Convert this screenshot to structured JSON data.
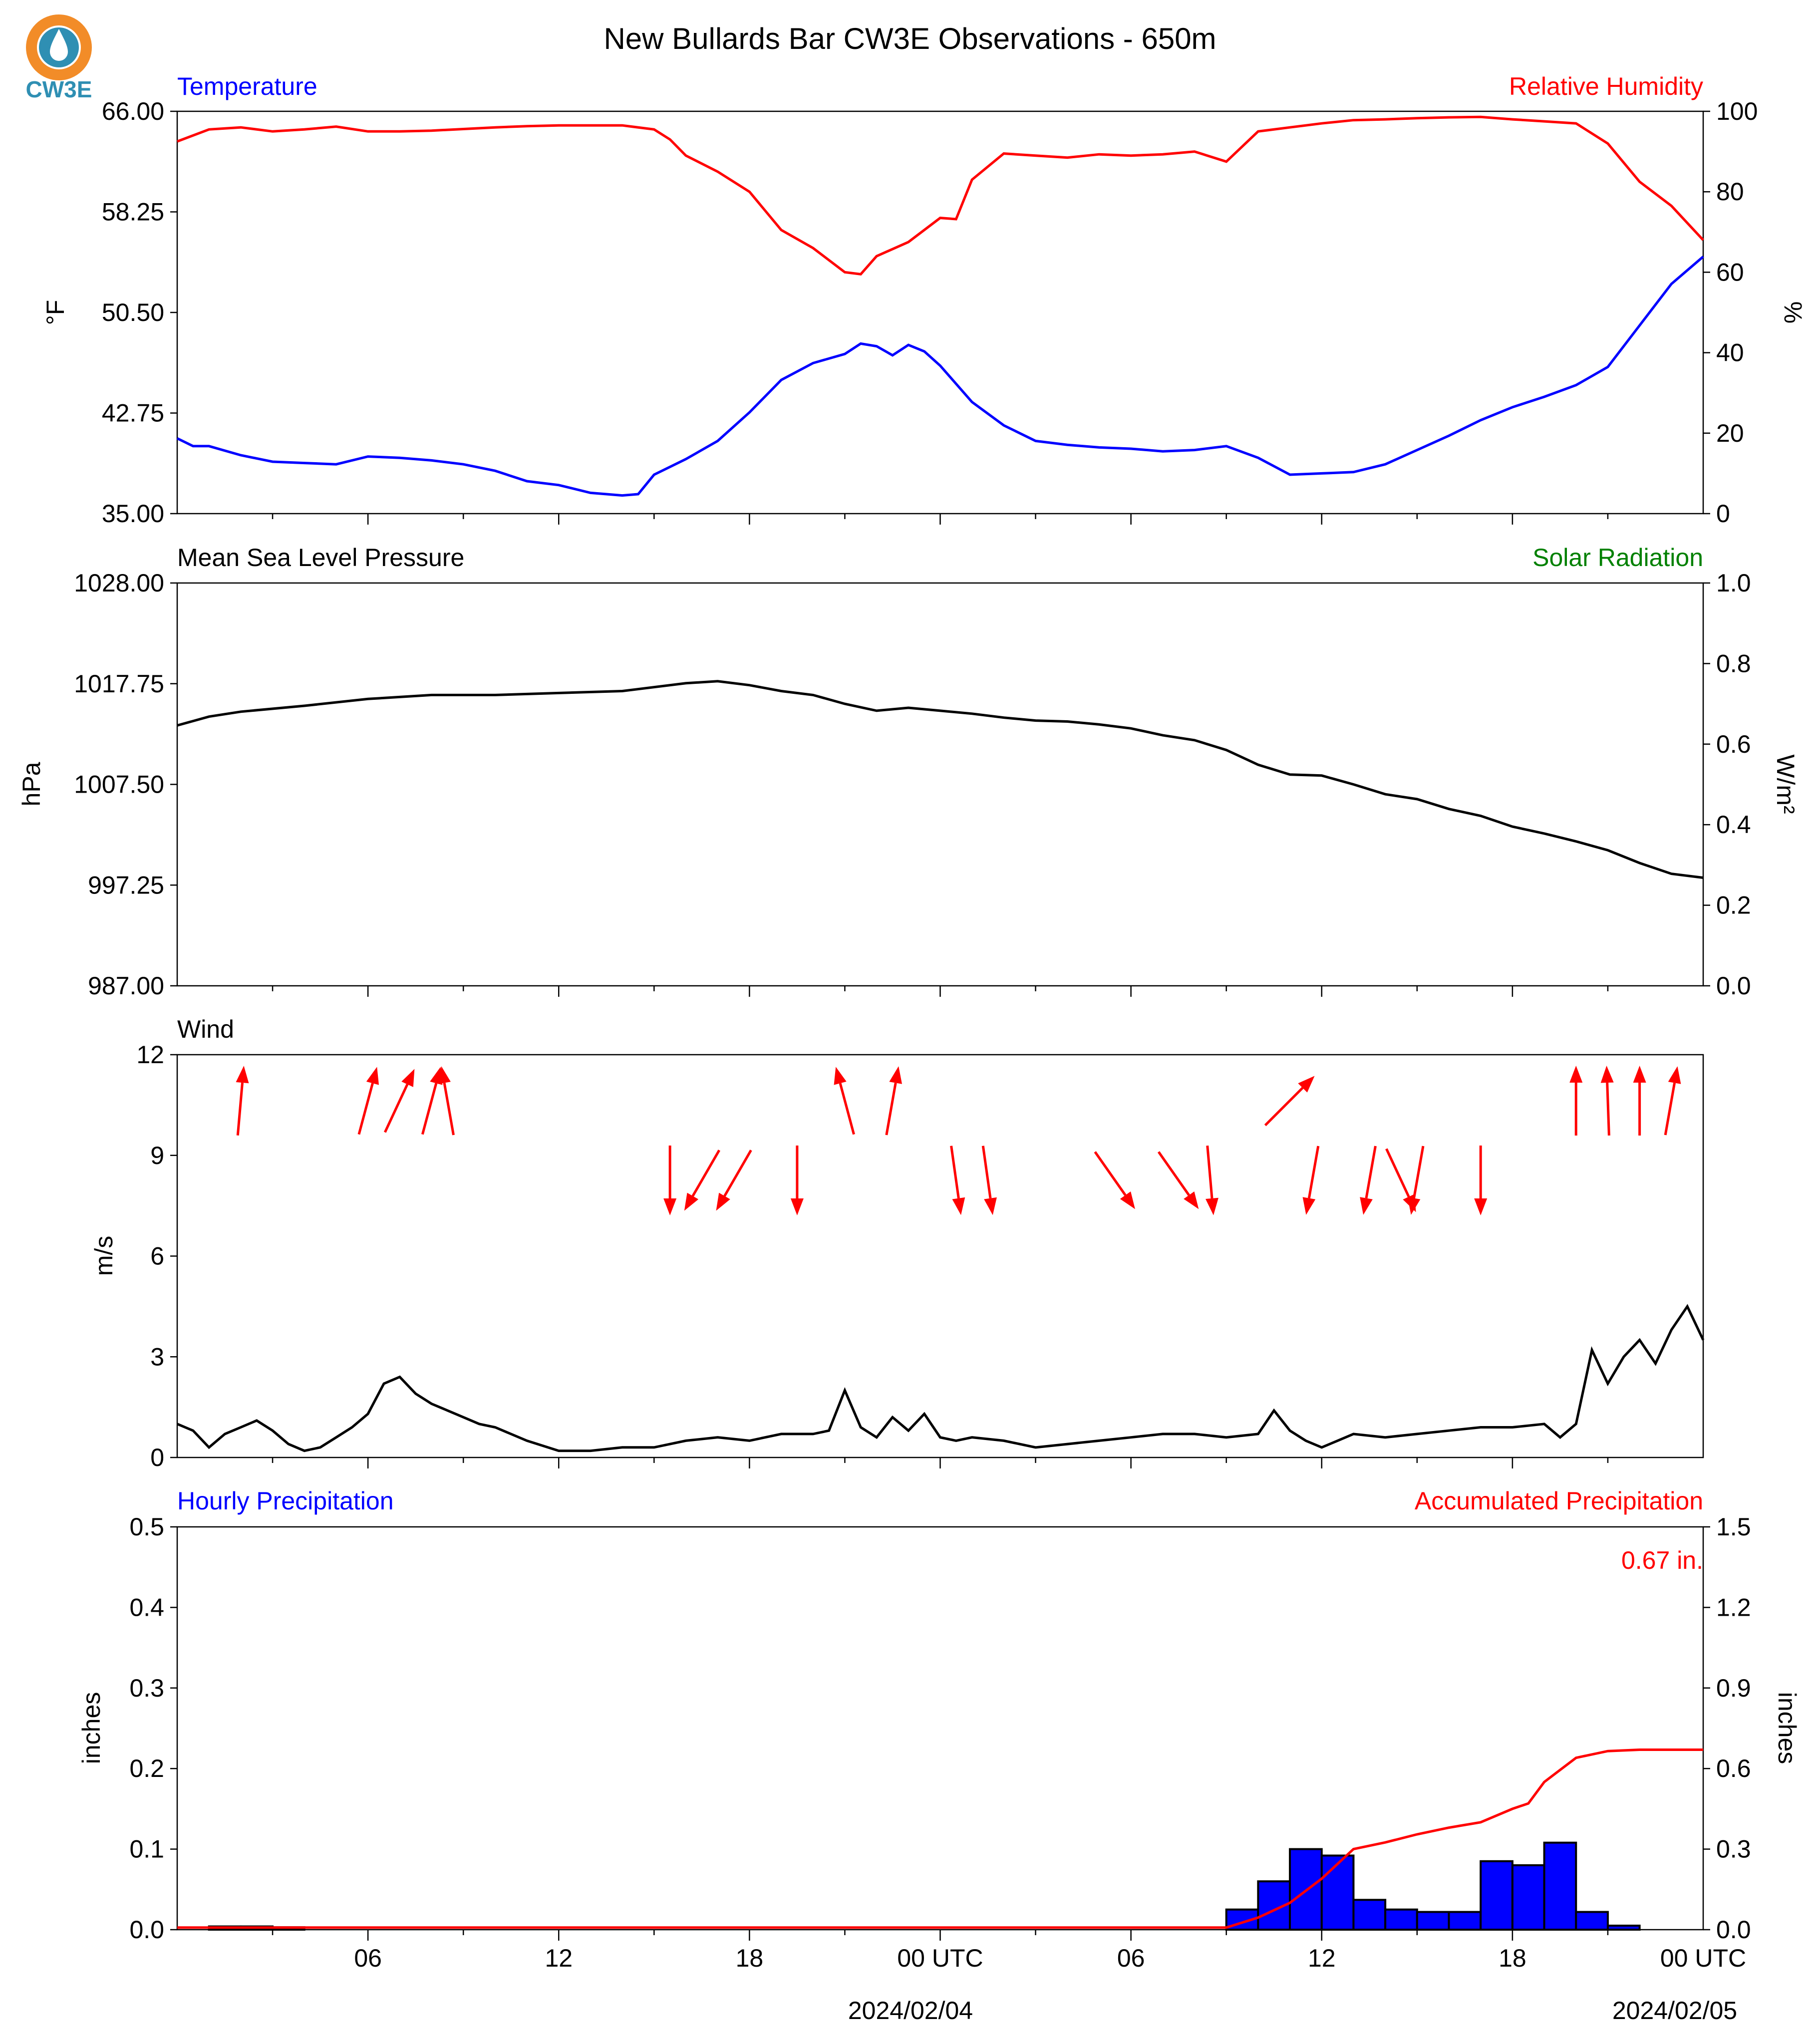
{
  "title": "New Bullards Bar CW3E Observations - 650m",
  "logo": {
    "text": "CW3E",
    "color": "#2f8fb3",
    "ring_color": "#f28c28",
    "icon": "water-drop-logo"
  },
  "colors": {
    "temperature": "#0000ff",
    "humidity": "#ff0000",
    "pressure": "#000000",
    "solar": "#008000",
    "wind_speed": "#000000",
    "wind_arrow": "#ff0000",
    "hourly_precip_fill": "#0000ff",
    "accum_precip": "#ff0000"
  },
  "x_axis": {
    "hours_span": 48,
    "ticks": [
      "06",
      "12",
      "18",
      "00 UTC",
      "06",
      "12",
      "18",
      "00 UTC"
    ],
    "dates": [
      "2024/02/04",
      "2024/02/05"
    ]
  },
  "chart_data": [
    {
      "type": "line",
      "left_title": "Temperature",
      "right_title": "Relative Humidity",
      "ylabel": "°F",
      "ylabel_right": "%",
      "ylim": [
        35.0,
        66.0
      ],
      "ylim_right": [
        0,
        100
      ],
      "yticks": [
        "35.00",
        "42.75",
        "50.50",
        "58.25",
        "66.00"
      ],
      "yticks_right": [
        "0",
        "20",
        "40",
        "60",
        "80",
        "100"
      ],
      "x_unit": "hours",
      "series": [
        {
          "axis": "left",
          "color": "#0000ff",
          "x": [
            0,
            0.5,
            1,
            2,
            3,
            4,
            5,
            6,
            7,
            8,
            9,
            10,
            11,
            12,
            13,
            14,
            14.5,
            15,
            15.5,
            16,
            17,
            18,
            19,
            20,
            21,
            21.5,
            22,
            22.5,
            23,
            23.5,
            24,
            25,
            26,
            27,
            28,
            29,
            30,
            31,
            32,
            33,
            34,
            35,
            36,
            37,
            38,
            39,
            40,
            41,
            42,
            43,
            44,
            45,
            46,
            47,
            48
          ],
          "y": [
            40.8,
            40.2,
            40.2,
            39.5,
            39.0,
            38.9,
            38.8,
            39.4,
            39.3,
            39.1,
            38.8,
            38.3,
            37.5,
            37.2,
            36.6,
            36.4,
            36.5,
            38.0,
            38.6,
            39.2,
            40.6,
            42.8,
            45.3,
            46.6,
            47.3,
            48.1,
            47.9,
            47.2,
            48.0,
            47.5,
            46.4,
            43.6,
            41.8,
            40.6,
            40.3,
            40.1,
            40.0,
            39.8,
            39.9,
            40.2,
            39.3,
            38.0,
            38.1,
            38.2,
            38.8,
            39.9,
            41.0,
            42.2,
            43.2,
            44.0,
            44.9,
            46.3,
            49.5,
            52.7,
            54.8
          ]
        },
        {
          "axis": "right",
          "color": "#ff0000",
          "x": [
            0,
            1,
            2,
            3,
            4,
            5,
            6,
            7,
            8,
            9,
            10,
            11,
            12,
            13,
            14,
            15,
            15.5,
            16,
            17,
            18,
            19,
            20,
            21,
            21.5,
            22,
            23,
            24,
            24.5,
            25,
            26,
            27,
            28,
            29,
            30,
            31,
            32,
            33,
            34,
            35,
            36,
            37,
            38,
            39,
            40,
            41,
            42,
            43,
            44,
            45,
            46,
            47,
            48
          ],
          "y": [
            92.5,
            95.5,
            96.0,
            95.0,
            95.5,
            96.2,
            95.0,
            95.0,
            95.2,
            95.6,
            96.0,
            96.3,
            96.5,
            96.5,
            96.5,
            95.5,
            93.0,
            89.0,
            85.0,
            80.0,
            70.5,
            66.0,
            60.0,
            59.5,
            64.0,
            67.5,
            73.5,
            73.2,
            83.0,
            89.5,
            89.0,
            88.5,
            89.3,
            89.0,
            89.3,
            90.0,
            87.5,
            95.0,
            96.0,
            97.0,
            97.8,
            98.0,
            98.3,
            98.5,
            98.6,
            98.0,
            97.5,
            97.0,
            92.0,
            82.5,
            76.5,
            68.0
          ]
        }
      ]
    },
    {
      "type": "line",
      "left_title": "Mean Sea Level Pressure",
      "right_title": "Solar Radiation",
      "ylabel": "hPa",
      "ylabel_right": "W/m²",
      "ylim": [
        987.0,
        1028.0
      ],
      "ylim_right": [
        0.0,
        1.0
      ],
      "yticks": [
        "987.00",
        "997.25",
        "1007.50",
        "1017.75",
        "1028.00"
      ],
      "yticks_right": [
        "0.0",
        "0.2",
        "0.4",
        "0.6",
        "0.8",
        "1.0"
      ],
      "x_unit": "hours",
      "series": [
        {
          "axis": "left",
          "color": "#000000",
          "x": [
            0,
            1,
            2,
            4,
            6,
            8,
            10,
            12,
            14,
            16,
            17,
            18,
            19,
            20,
            21,
            22,
            23,
            24,
            25,
            26,
            27,
            28,
            29,
            30,
            31,
            32,
            33,
            34,
            35,
            36,
            37,
            38,
            39,
            40,
            41,
            42,
            43,
            44,
            45,
            46,
            47,
            48
          ],
          "y": [
            1013.5,
            1014.4,
            1014.9,
            1015.5,
            1016.2,
            1016.6,
            1016.6,
            1016.8,
            1017.0,
            1017.8,
            1018.0,
            1017.6,
            1017.0,
            1016.6,
            1015.7,
            1015.0,
            1015.3,
            1015.0,
            1014.7,
            1014.3,
            1014.0,
            1013.9,
            1013.6,
            1013.2,
            1012.5,
            1012.0,
            1011.0,
            1009.5,
            1008.5,
            1008.4,
            1007.5,
            1006.5,
            1006.0,
            1005.0,
            1004.3,
            1003.2,
            1002.5,
            1001.7,
            1000.8,
            999.5,
            998.4,
            998.0
          ]
        }
      ]
    },
    {
      "type": "line",
      "left_title": "Wind",
      "ylabel": "m/s",
      "ylim": [
        0,
        12
      ],
      "yticks": [
        "0",
        "3",
        "6",
        "9",
        "12"
      ],
      "x_unit": "hours",
      "series": [
        {
          "axis": "left",
          "color": "#000000",
          "x": [
            0,
            0.5,
            1,
            1.5,
            2,
            2.5,
            3,
            3.5,
            4,
            4.5,
            5,
            5.5,
            6,
            6.5,
            7,
            7.5,
            8,
            8.5,
            9,
            9.5,
            10,
            11,
            12,
            13,
            14,
            15,
            16,
            17,
            18,
            19,
            20,
            20.5,
            21,
            21.5,
            22,
            22.5,
            23,
            23.5,
            24,
            24.5,
            25,
            26,
            27,
            28,
            29,
            30,
            31,
            32,
            33,
            34,
            34.5,
            35,
            35.5,
            36,
            36.5,
            37,
            38,
            39,
            40,
            41,
            42,
            43,
            43.5,
            44,
            44.5,
            45,
            45.5,
            46,
            46.5,
            47,
            47.5,
            48
          ],
          "y": [
            1.0,
            0.8,
            0.3,
            0.7,
            0.9,
            1.1,
            0.8,
            0.4,
            0.2,
            0.3,
            0.6,
            0.9,
            1.3,
            2.2,
            2.4,
            1.9,
            1.6,
            1.4,
            1.2,
            1.0,
            0.9,
            0.5,
            0.2,
            0.2,
            0.3,
            0.3,
            0.5,
            0.6,
            0.5,
            0.7,
            0.7,
            0.8,
            2.0,
            0.9,
            0.6,
            1.2,
            0.8,
            1.3,
            0.6,
            0.5,
            0.6,
            0.5,
            0.3,
            0.4,
            0.5,
            0.6,
            0.7,
            0.7,
            0.6,
            0.7,
            1.4,
            0.8,
            0.5,
            0.3,
            0.5,
            0.7,
            0.6,
            0.7,
            0.8,
            0.9,
            0.9,
            1.0,
            0.6,
            1.0,
            3.2,
            2.2,
            3.0,
            3.5,
            2.8,
            3.8,
            4.5,
            3.5
          ]
        }
      ],
      "arrows": {
        "x": [
          2,
          6,
          7,
          8,
          8.5,
          15.5,
          16.5,
          17.5,
          19.5,
          21,
          22.5,
          24.5,
          25.5,
          29.5,
          31.5,
          32.5,
          35,
          35.7,
          37.5,
          38.5,
          39,
          41,
          44,
          45,
          46,
          47
        ],
        "row": [
          "upper",
          "upper",
          "upper",
          "upper",
          "upper",
          "lower",
          "lower",
          "lower",
          "lower",
          "upper",
          "upper",
          "lower",
          "lower",
          "lower",
          "lower",
          "lower",
          "upper",
          "lower",
          "lower",
          "lower",
          "lower",
          "lower",
          "upper",
          "upper",
          "upper",
          "upper"
        ],
        "direction_deg": [
          5,
          15,
          25,
          15,
          350,
          180,
          210,
          210,
          180,
          345,
          10,
          172,
          172,
          145,
          145,
          175,
          45,
          190,
          190,
          155,
          190,
          180,
          0,
          358,
          0,
          10
        ]
      }
    },
    {
      "type": "bar",
      "left_title": "Hourly Precipitation",
      "right_title": "Accumulated Precipitation",
      "annotation": "0.67 in.",
      "ylabel": "inches",
      "ylabel_right": "inches",
      "ylim": [
        0,
        0.5
      ],
      "ylim_right": [
        0,
        1.5
      ],
      "yticks": [
        "0.0",
        "0.1",
        "0.2",
        "0.3",
        "0.4",
        "0.5"
      ],
      "yticks_right": [
        "0.0",
        "0.3",
        "0.6",
        "0.9",
        "1.2",
        "1.5"
      ],
      "x_unit": "hours",
      "bars": {
        "start_hour": [
          1,
          2,
          3,
          33,
          34,
          35,
          36,
          37,
          38,
          39,
          40,
          41,
          42,
          43,
          44,
          45
        ],
        "values": [
          0.004,
          0.004,
          0.003,
          0.025,
          0.06,
          0.1,
          0.092,
          0.037,
          0.025,
          0.022,
          0.022,
          0.085,
          0.08,
          0.108,
          0.022,
          0.005
        ]
      },
      "series": [
        {
          "name": "Accumulated Precipitation",
          "axis": "right",
          "color": "#ff0000",
          "x": [
            0,
            33,
            34,
            35,
            36,
            37,
            38,
            39,
            40,
            41,
            42,
            42.5,
            43,
            44,
            45,
            46,
            47,
            48
          ],
          "y": [
            0.008,
            0.008,
            0.045,
            0.1,
            0.19,
            0.3,
            0.325,
            0.355,
            0.38,
            0.4,
            0.45,
            0.47,
            0.55,
            0.64,
            0.665,
            0.67,
            0.67,
            0.67
          ]
        }
      ]
    }
  ]
}
